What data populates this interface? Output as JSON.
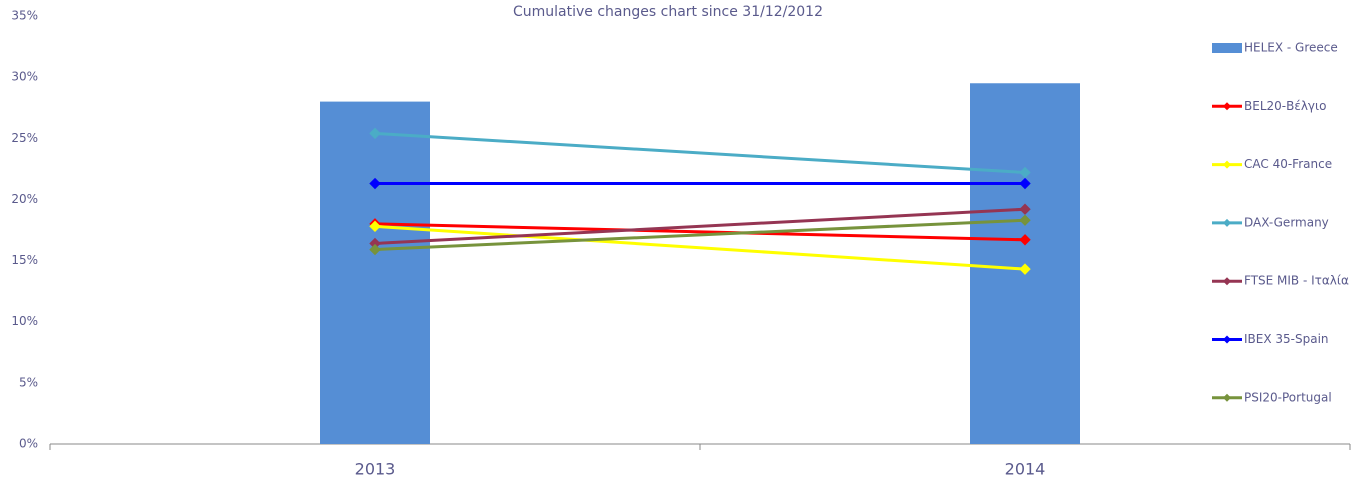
{
  "chart_data": {
    "type": "combo",
    "title": "Cumulative changes chart since 31/12/2012",
    "categories": [
      "2013",
      "2014"
    ],
    "series": [
      {
        "name": "HELEX - Greece",
        "type": "bar",
        "color": "#558ed5",
        "values": [
          28.0,
          29.5
        ]
      },
      {
        "name": "BEL20-Βέλγιο",
        "type": "line",
        "color": "#ff0000",
        "values": [
          18.0,
          16.7
        ]
      },
      {
        "name": "CAC 40-France",
        "type": "line",
        "color": "#ffff00",
        "values": [
          17.8,
          14.3
        ]
      },
      {
        "name": "DAX-Germany",
        "type": "line",
        "color": "#4bacc6",
        "values": [
          25.4,
          22.2
        ]
      },
      {
        "name": "FTSE MIB - Ιταλία",
        "type": "line",
        "color": "#953553",
        "values": [
          16.4,
          19.2
        ]
      },
      {
        "name": "IBEX 35-Spain",
        "type": "line",
        "color": "#0000ff",
        "values": [
          21.3,
          21.3
        ]
      },
      {
        "name": "PSI20-Portugal",
        "type": "line",
        "color": "#77933c",
        "values": [
          15.9,
          18.3
        ]
      }
    ],
    "ylim": [
      0,
      35
    ],
    "yticks": [
      {
        "value": 0,
        "label": "0%"
      },
      {
        "value": 5,
        "label": "5%"
      },
      {
        "value": 10,
        "label": "10%"
      },
      {
        "value": 15,
        "label": "15%"
      },
      {
        "value": 20,
        "label": "20%"
      },
      {
        "value": 25,
        "label": "25%"
      },
      {
        "value": 30,
        "label": "30%"
      },
      {
        "value": 35,
        "label": "35%"
      }
    ],
    "legend": "right"
  }
}
